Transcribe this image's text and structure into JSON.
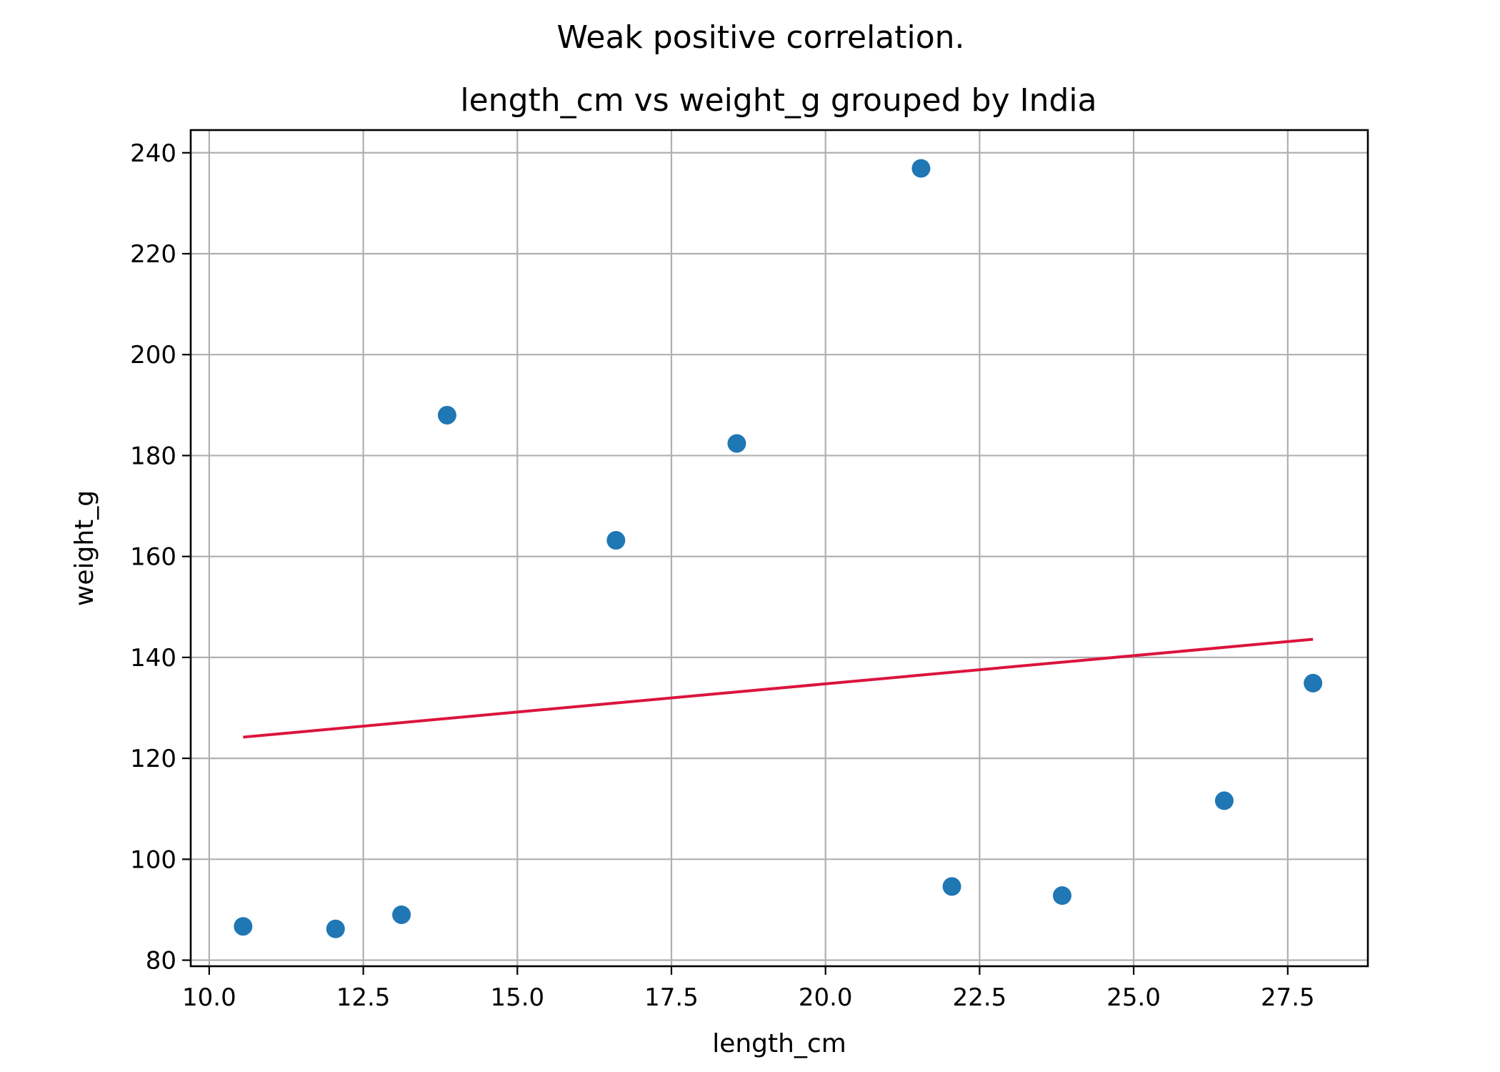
{
  "chart_data": {
    "type": "scatter",
    "suptitle": "Weak positive correlation.",
    "title": "length_cm vs weight_g grouped by India",
    "xlabel": "length_cm",
    "ylabel": "weight_g",
    "xlim": [
      9.7,
      28.8
    ],
    "ylim": [
      78.8,
      244.5
    ],
    "xticks": [
      10.0,
      12.5,
      15.0,
      17.5,
      20.0,
      22.5,
      25.0,
      27.5
    ],
    "xtick_labels": [
      "10.0",
      "12.5",
      "15.0",
      "17.5",
      "20.0",
      "22.5",
      "25.0",
      "27.5"
    ],
    "yticks": [
      80,
      100,
      120,
      140,
      160,
      180,
      200,
      220,
      240
    ],
    "ytick_labels": [
      "80",
      "100",
      "120",
      "140",
      "160",
      "180",
      "200",
      "220",
      "240"
    ],
    "grid": true,
    "series": [
      {
        "x": [
          10.55,
          12.05,
          13.12,
          13.86,
          16.6,
          18.56,
          21.55,
          22.05,
          23.84,
          26.47,
          27.91
        ],
        "y": [
          86.7,
          86.2,
          89.0,
          188.0,
          163.2,
          182.4,
          236.9,
          94.6,
          92.8,
          111.6,
          134.9
        ],
        "color": "#1f77b4"
      }
    ],
    "trendline": {
      "x": [
        10.55,
        27.91
      ],
      "y": [
        124.2,
        143.6
      ],
      "color": "#dc143c"
    }
  }
}
